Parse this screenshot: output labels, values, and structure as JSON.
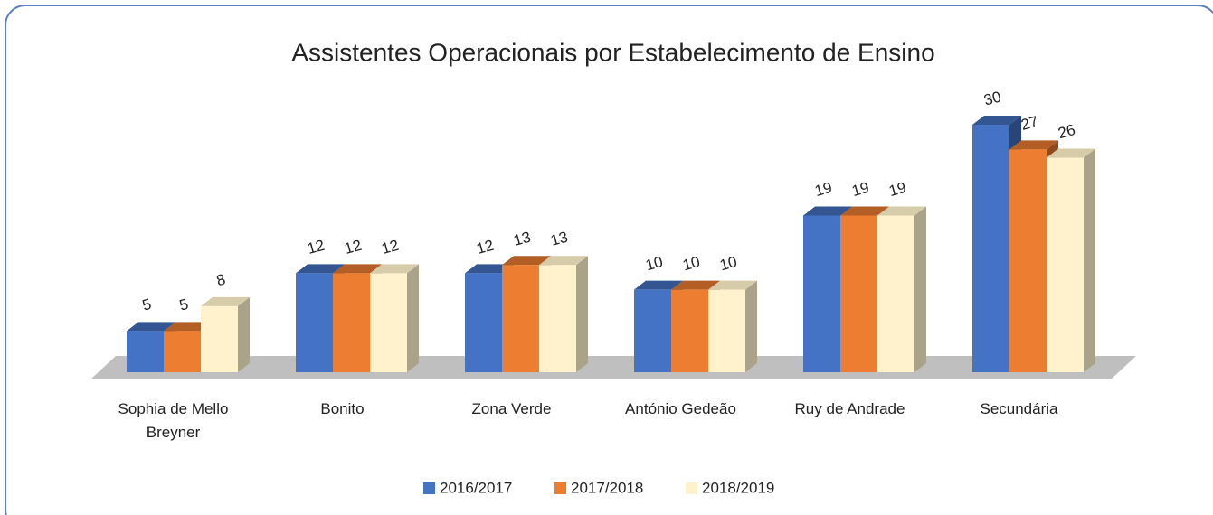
{
  "chart_data": {
    "type": "bar3d",
    "title": "Assistentes Operacionais por Estabelecimento de Ensino",
    "categories": [
      "Sophia de Mello Breyner",
      "Bonito",
      "Zona Verde",
      "António Gedeão",
      "Ruy de Andrade",
      "Secundária"
    ],
    "series": [
      {
        "name": "2016/2017",
        "color": "#4472c4",
        "values": [
          5,
          12,
          12,
          10,
          19,
          30
        ]
      },
      {
        "name": "2017/2018",
        "color": "#ed7d31",
        "values": [
          5,
          12,
          13,
          10,
          19,
          27
        ]
      },
      {
        "name": "2018/2019",
        "color": "#fff2cc",
        "values": [
          8,
          12,
          13,
          10,
          19,
          26
        ]
      }
    ]
  }
}
